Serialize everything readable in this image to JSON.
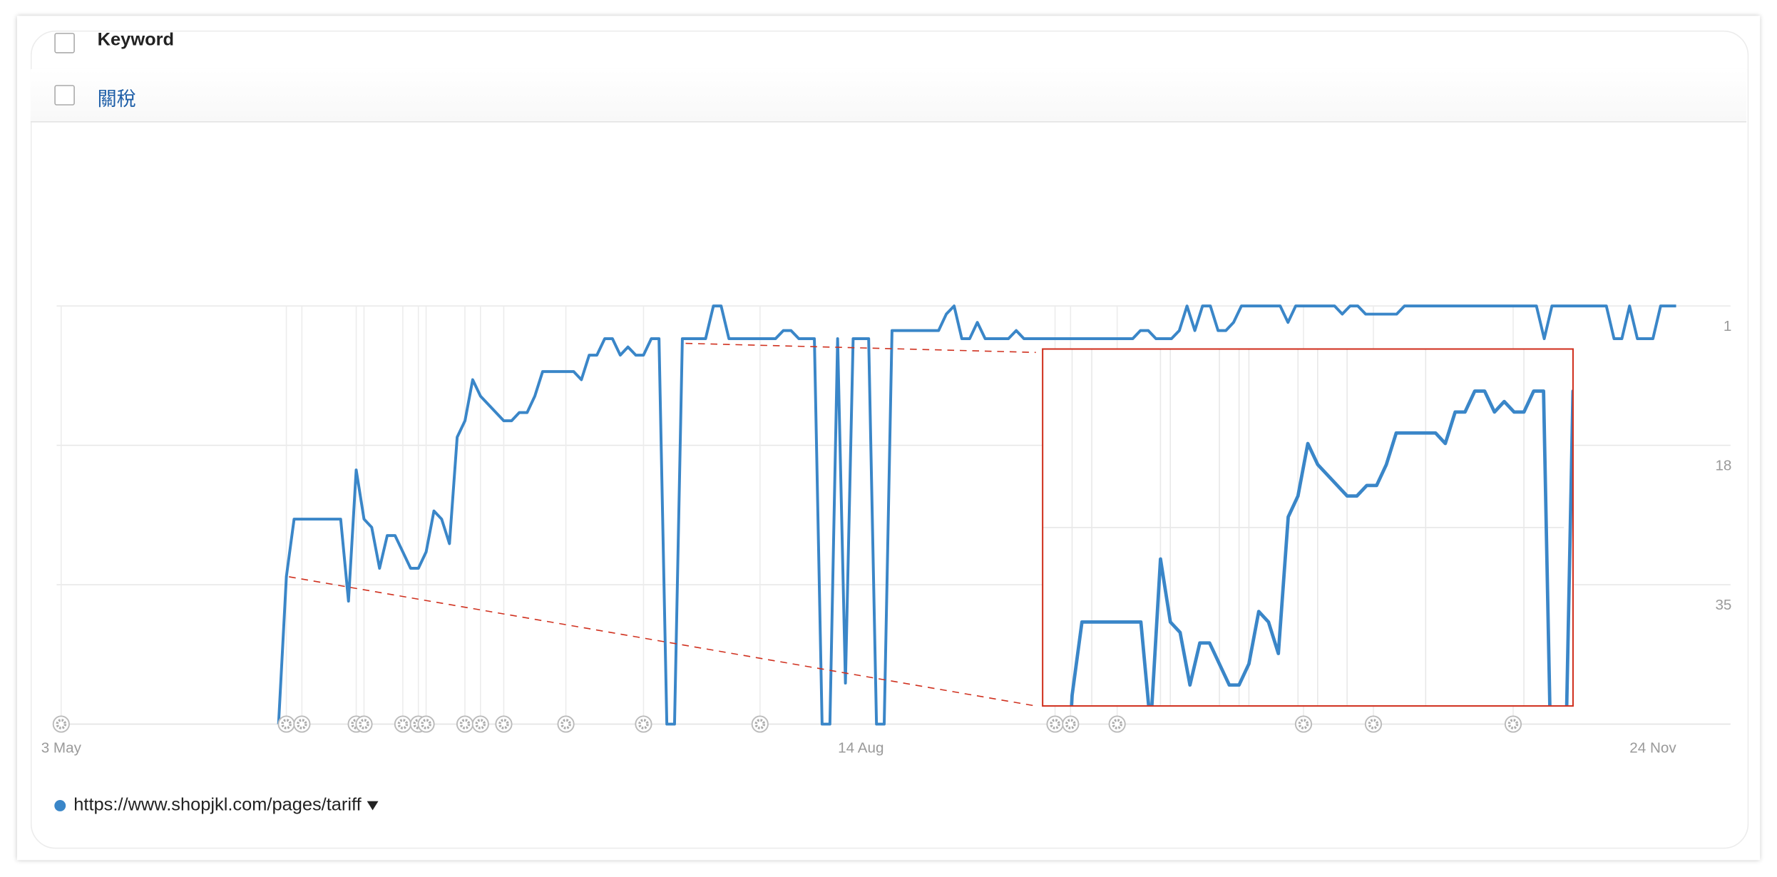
{
  "table": {
    "header": {
      "title": "Keyword"
    },
    "rows": [
      {
        "keyword": "關稅"
      }
    ]
  },
  "chart_data": {
    "type": "line",
    "x": [
      28,
      29,
      30,
      36,
      37,
      38,
      39,
      40,
      41,
      42,
      43,
      45,
      46,
      47,
      48,
      49,
      50,
      51,
      52,
      53,
      54,
      57,
      58,
      59,
      60,
      61,
      62,
      66,
      67,
      68,
      69,
      70,
      71,
      72,
      73,
      74,
      75,
      76,
      77,
      78,
      79,
      80,
      83,
      84,
      85,
      86,
      92,
      93,
      94,
      95,
      97,
      98,
      99,
      100,
      101,
      102,
      104,
      105,
      106,
      107,
      113,
      114,
      115,
      116,
      117,
      118,
      119,
      122,
      123,
      124,
      138,
      139,
      140,
      141,
      143,
      144,
      145,
      146,
      147,
      148,
      149,
      150,
      151,
      152,
      157,
      158,
      159,
      164,
      165,
      166,
      167,
      168,
      172,
      173,
      190,
      191,
      192,
      199,
      200,
      201,
      202,
      203,
      205,
      206,
      208
    ],
    "series": [
      {
        "name": "https://www.shopjkl.com/pages/tariff",
        "color": "#3a86c8",
        "values": [
          52,
          34,
          27,
          27,
          37,
          21,
          27,
          28,
          33,
          29,
          29,
          33,
          33,
          31,
          26,
          27,
          30,
          17,
          15,
          10,
          12,
          15,
          15,
          14,
          14,
          12,
          9,
          9,
          10,
          7,
          7,
          5,
          5,
          7,
          6,
          7,
          7,
          5,
          5,
          52,
          52,
          5,
          5,
          1,
          1,
          5,
          5,
          4,
          4,
          5,
          5,
          52,
          52,
          5,
          47,
          5,
          5,
          52,
          52,
          4,
          4,
          2,
          1,
          5,
          5,
          3,
          5,
          5,
          4,
          5,
          5,
          4,
          4,
          5,
          5,
          4,
          1,
          4,
          1,
          1,
          4,
          4,
          3,
          1,
          1,
          3,
          1,
          1,
          2,
          1,
          1,
          2,
          2,
          1,
          1,
          5,
          1,
          1,
          5,
          5,
          1,
          5,
          5,
          1,
          1
        ]
      }
    ],
    "xlim": [
      0,
      215
    ],
    "xticks": [
      {
        "value": 0,
        "label": "3 May"
      },
      {
        "value": 103,
        "label": "14 Aug"
      },
      {
        "value": 205,
        "label": "24 Nov"
      }
    ],
    "ylim": [
      52,
      1
    ],
    "yticks": [
      1,
      18,
      35
    ],
    "grid": true,
    "events": [
      0,
      29,
      31,
      38,
      39,
      44,
      46,
      47,
      52,
      54,
      57,
      65,
      75,
      90,
      128,
      130,
      136,
      160,
      169,
      187
    ],
    "inset": {
      "xlim": [
        26,
        80
      ],
      "ylim": [
        35,
        1
      ],
      "color": "#d0311f"
    }
  }
}
